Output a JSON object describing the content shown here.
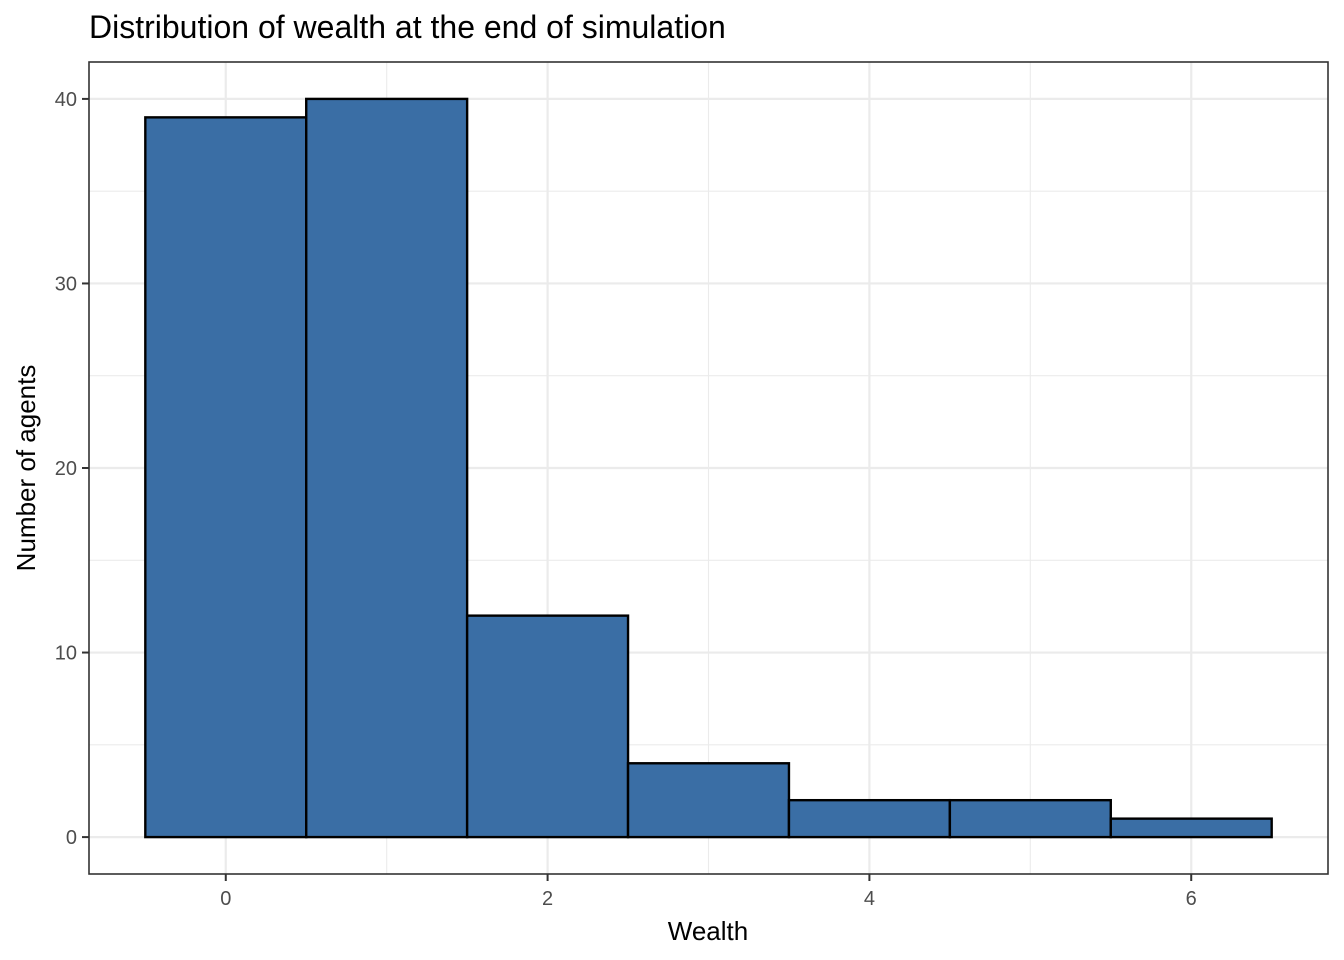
{
  "chart_data": {
    "type": "bar",
    "title": "Distribution of wealth at the end of simulation",
    "xlabel": "Wealth",
    "ylabel": "Number of agents",
    "x": [
      0,
      1,
      2,
      3,
      4,
      5,
      6
    ],
    "values": [
      39,
      40,
      12,
      4,
      2,
      2,
      1
    ],
    "bin_width": 1,
    "xlim": [
      -0.85,
      6.85
    ],
    "ylim": [
      -2,
      42
    ],
    "x_ticks": [
      0,
      2,
      4,
      6
    ],
    "y_ticks": [
      0,
      10,
      20,
      30,
      40
    ],
    "grid": true,
    "colors": {
      "bar_fill": "#3a6ea5",
      "bar_outline": "#000000"
    }
  }
}
